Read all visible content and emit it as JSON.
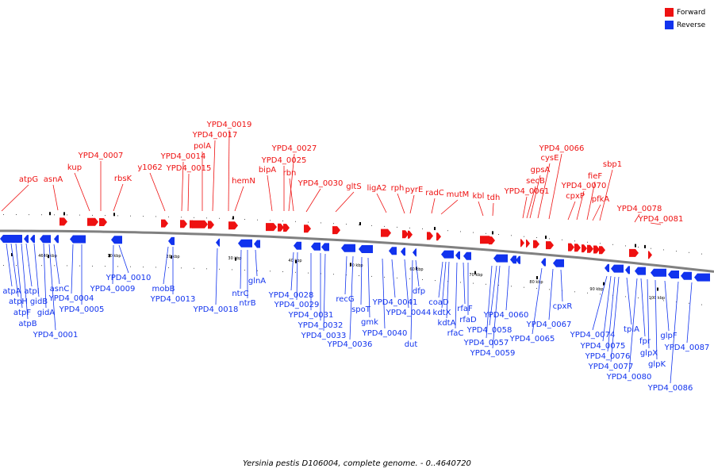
{
  "caption": "Yersinia pestis D106004, complete genome. - 0..4640720",
  "colors": {
    "forward": "#ee1111",
    "reverse": "#1133ee",
    "backbone": "#808080"
  },
  "legend": [
    {
      "label": "Forward",
      "color": "#ee1111"
    },
    {
      "label": "Reverse",
      "color": "#1133ee"
    }
  ],
  "kbp_labels": [
    "4640 kbp",
    "10 kbp",
    "20 kbp",
    "30 kbp",
    "40 kbp",
    "50 kbp",
    "60 kbp",
    "70 kbp",
    "80 kbp",
    "90 kbp",
    "100 kbp"
  ],
  "forward_genes": [
    "atpG",
    "asnA",
    "kup",
    "YPD4_0007",
    "rbsK",
    "y1062",
    "YPD4_0014",
    "YPD4_0015",
    "polA",
    "YPD4_0017",
    "YPD4_0019",
    "hemN",
    "bipA",
    "YPD4_0025",
    "YPD4_0027",
    "rbn",
    "YPD4_0030",
    "gltS",
    "ligA2",
    "rph",
    "pyrE",
    "radC",
    "mutM",
    "kbl",
    "tdh",
    "YPD4_0061",
    "secB",
    "gpsA",
    "cysE",
    "YPD4_0066",
    "cpxP",
    "YPD4_0070",
    "fieF",
    "pfkA",
    "sbp1",
    "YPD4_0078",
    "YPD4_0081"
  ],
  "reverse_genes": [
    "atpA",
    "atpH",
    "atpF",
    "atpB",
    "atpI",
    "gidB",
    "gidA",
    "asnC",
    "YPD4_0001",
    "YPD4_0004",
    "YPD4_0005",
    "YPD4_0009",
    "YPD4_0010",
    "mobB",
    "YPD4_0013",
    "YPD4_0018",
    "ntrC",
    "ntrB",
    "glnA",
    "YPD4_0028",
    "YPD4_0029",
    "YPD4_0031",
    "YPD4_0032",
    "YPD4_0033",
    "recG",
    "YPD4_0036",
    "spoT",
    "gmk",
    "YPD4_0040",
    "YPD4_0041",
    "YPD4_0044",
    "dut",
    "dfp",
    "coaD",
    "kdtX",
    "kdtA",
    "rfaF",
    "rfaD",
    "rfaC",
    "YPD4_0057",
    "YPD4_0058",
    "YPD4_0059",
    "YPD4_0060",
    "YPD4_0065",
    "YPD4_0067",
    "cpxR",
    "YPD4_0074",
    "YPD4_0075",
    "YPD4_0076",
    "YPD4_0077",
    "tpiA",
    "YPD4_0080",
    "fpr",
    "glpX",
    "glpK",
    "glpF",
    "YPD4_0086",
    "YPD4_0087"
  ]
}
